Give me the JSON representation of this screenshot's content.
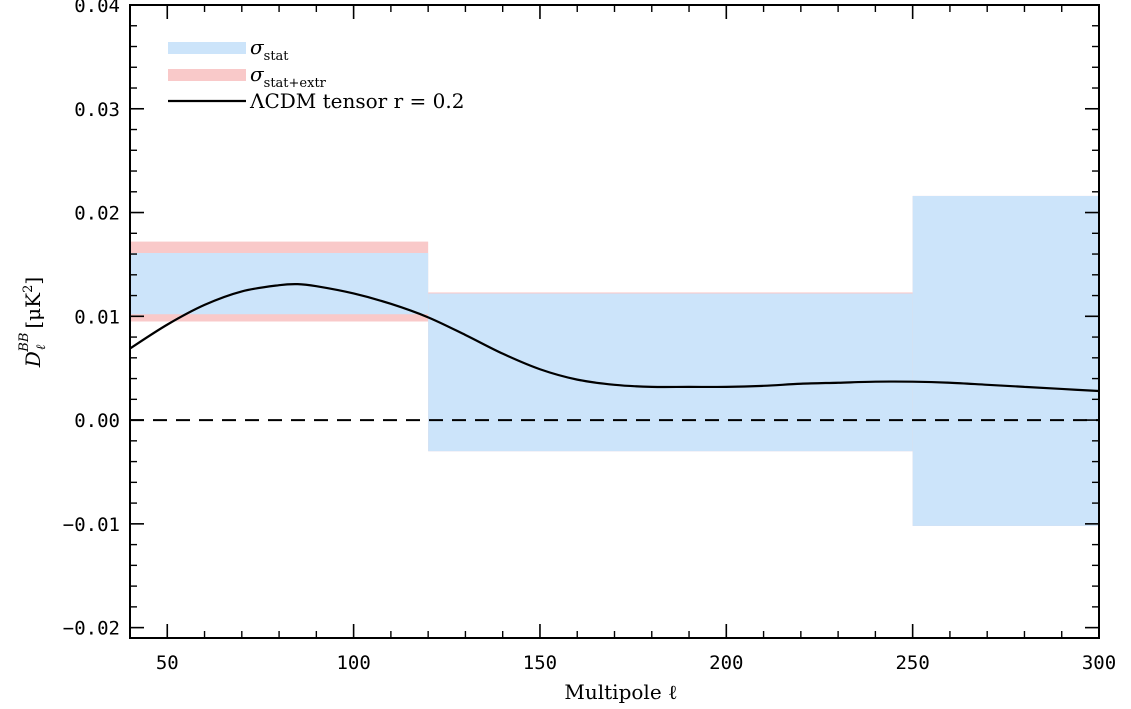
{
  "chart_data": {
    "type": "area",
    "xlabel": "Multipole ℓ",
    "ylabel": "D_ℓ^BB [μK²]",
    "xlim": [
      40,
      300
    ],
    "ylim": [
      -0.021,
      0.04
    ],
    "x_ticks": [
      50,
      100,
      150,
      200,
      250,
      300
    ],
    "x_tick_labels": [
      "50",
      "100",
      "150",
      "200",
      "250",
      "300"
    ],
    "y_ticks": [
      -0.02,
      -0.01,
      0.0,
      0.01,
      0.02,
      0.03,
      0.04
    ],
    "y_tick_labels": [
      "−0.02",
      "−0.01",
      "0.00",
      "0.01",
      "0.02",
      "0.03",
      "0.04"
    ],
    "colors": {
      "stat": "#cce4fa",
      "stat_extr": "#f9c9c9",
      "curve": "#000000",
      "zero_line": "#000000"
    },
    "legend": {
      "placement": "top-left",
      "entries": [
        {
          "key": "stat",
          "symbol": "σ",
          "subscript": "stat"
        },
        {
          "key": "stat_extr",
          "symbol": "σ",
          "subscript": "stat+extr"
        },
        {
          "key": "curve",
          "text": "ΛCDM tensor r = 0.2"
        }
      ]
    },
    "bins": [
      {
        "x": [
          40,
          120
        ],
        "stat": [
          0.0102,
          0.0161
        ],
        "stat_extr": [
          0.0095,
          0.0172
        ]
      },
      {
        "x": [
          120,
          250
        ],
        "stat": [
          -0.003,
          0.0122
        ],
        "stat_extr": [
          -0.003,
          0.0123
        ]
      },
      {
        "x": [
          250,
          300
        ],
        "stat": [
          -0.0102,
          0.0216
        ],
        "stat_extr": [
          -0.0102,
          0.0216
        ]
      }
    ],
    "series": [
      {
        "name": "ΛCDM tensor r = 0.2",
        "x": [
          40,
          50,
          60,
          70,
          80,
          85,
          90,
          100,
          110,
          120,
          130,
          140,
          150,
          160,
          170,
          180,
          190,
          200,
          210,
          220,
          230,
          240,
          250,
          260,
          270,
          280,
          290,
          300
        ],
        "y": [
          0.0069,
          0.0092,
          0.0111,
          0.0124,
          0.013,
          0.0131,
          0.0129,
          0.0122,
          0.0112,
          0.0099,
          0.0082,
          0.0064,
          0.0049,
          0.0039,
          0.0034,
          0.0032,
          0.0032,
          0.0032,
          0.0033,
          0.0035,
          0.0036,
          0.0037,
          0.0037,
          0.0036,
          0.0034,
          0.0032,
          0.003,
          0.0028
        ]
      }
    ],
    "zero_line": {
      "y": 0,
      "style": "dashed"
    }
  }
}
